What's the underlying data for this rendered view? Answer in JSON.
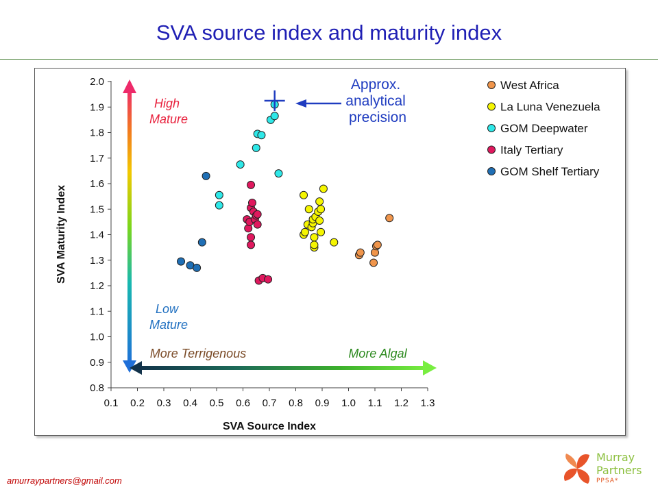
{
  "slide": {
    "title": "SVA source index and maturity index",
    "email": "amurraypartners@gmail.com",
    "logo": {
      "line1": "Murray",
      "line2": "Partners",
      "line3": "PPSA*"
    }
  },
  "chart_data": {
    "type": "scatter",
    "title": "",
    "xlabel": "SVA Source Index",
    "ylabel": "SVA Maturity Index",
    "xlim": [
      0.1,
      1.3
    ],
    "ylim": [
      0.8,
      2.0
    ],
    "xticks": [
      "0.1",
      "0.2",
      "0.3",
      "0.4",
      "0.5",
      "0.6",
      "0.7",
      "0.8",
      "0.9",
      "1.0",
      "1.1",
      "1.2",
      "1.3"
    ],
    "yticks": [
      "0.8",
      "0.9",
      "1.0",
      "1.1",
      "1.2",
      "1.3",
      "1.4",
      "1.5",
      "1.6",
      "1.7",
      "1.8",
      "1.9",
      "2.0"
    ],
    "grid": false,
    "legend_position": "top-right",
    "series": [
      {
        "name": "West Africa",
        "color": "#f0954b",
        "points": [
          [
            1.04,
            1.32
          ],
          [
            1.045,
            1.33
          ],
          [
            1.095,
            1.29
          ],
          [
            1.1,
            1.33
          ],
          [
            1.105,
            1.355
          ],
          [
            1.11,
            1.36
          ],
          [
            1.155,
            1.465
          ]
        ]
      },
      {
        "name": "La Luna Venezuela",
        "color": "#f5f500",
        "points": [
          [
            0.83,
            1.555
          ],
          [
            0.83,
            1.4
          ],
          [
            0.835,
            1.41
          ],
          [
            0.845,
            1.44
          ],
          [
            0.85,
            1.5
          ],
          [
            0.86,
            1.43
          ],
          [
            0.865,
            1.445
          ],
          [
            0.865,
            1.46
          ],
          [
            0.87,
            1.35
          ],
          [
            0.87,
            1.36
          ],
          [
            0.87,
            1.39
          ],
          [
            0.875,
            1.47
          ],
          [
            0.885,
            1.49
          ],
          [
            0.89,
            1.53
          ],
          [
            0.89,
            1.455
          ],
          [
            0.895,
            1.41
          ],
          [
            0.895,
            1.5
          ],
          [
            0.905,
            1.58
          ],
          [
            0.945,
            1.37
          ]
        ]
      },
      {
        "name": "GOM Deepwater",
        "color": "#2ee8e8",
        "points": [
          [
            0.51,
            1.555
          ],
          [
            0.51,
            1.515
          ],
          [
            0.59,
            1.675
          ],
          [
            0.65,
            1.74
          ],
          [
            0.655,
            1.795
          ],
          [
            0.67,
            1.79
          ],
          [
            0.705,
            1.85
          ],
          [
            0.72,
            1.865
          ],
          [
            0.72,
            1.91
          ],
          [
            0.735,
            1.64
          ]
        ]
      },
      {
        "name": "Italy Tertiary",
        "color": "#e0185e",
        "points": [
          [
            0.615,
            1.46
          ],
          [
            0.62,
            1.425
          ],
          [
            0.625,
            1.45
          ],
          [
            0.63,
            1.595
          ],
          [
            0.63,
            1.505
          ],
          [
            0.63,
            1.39
          ],
          [
            0.63,
            1.36
          ],
          [
            0.635,
            1.525
          ],
          [
            0.64,
            1.49
          ],
          [
            0.645,
            1.46
          ],
          [
            0.65,
            1.475
          ],
          [
            0.655,
            1.44
          ],
          [
            0.655,
            1.48
          ],
          [
            0.66,
            1.22
          ],
          [
            0.675,
            1.23
          ],
          [
            0.695,
            1.225
          ]
        ]
      },
      {
        "name": "GOM Shelf Tertiary",
        "color": "#1f6fb5",
        "points": [
          [
            0.365,
            1.295
          ],
          [
            0.4,
            1.28
          ],
          [
            0.425,
            1.27
          ],
          [
            0.445,
            1.37
          ],
          [
            0.46,
            1.63
          ]
        ]
      }
    ],
    "precision_marker": {
      "x": 0.72,
      "y": 1.925
    },
    "annotations": {
      "high_mature": [
        "High",
        "Mature"
      ],
      "low_mature": [
        "Low",
        "Mature"
      ],
      "more_terrigenous": "More Terrigenous",
      "more_algal": "More Algal",
      "precision": [
        "Approx.",
        "analytical",
        "precision"
      ]
    },
    "annotation_colors": {
      "high": "#e8203c",
      "low": "#1f6fc0",
      "terrigenous": "#7a4a26",
      "algal": "#2d8a1f",
      "precision": "#1f3cc0"
    }
  }
}
